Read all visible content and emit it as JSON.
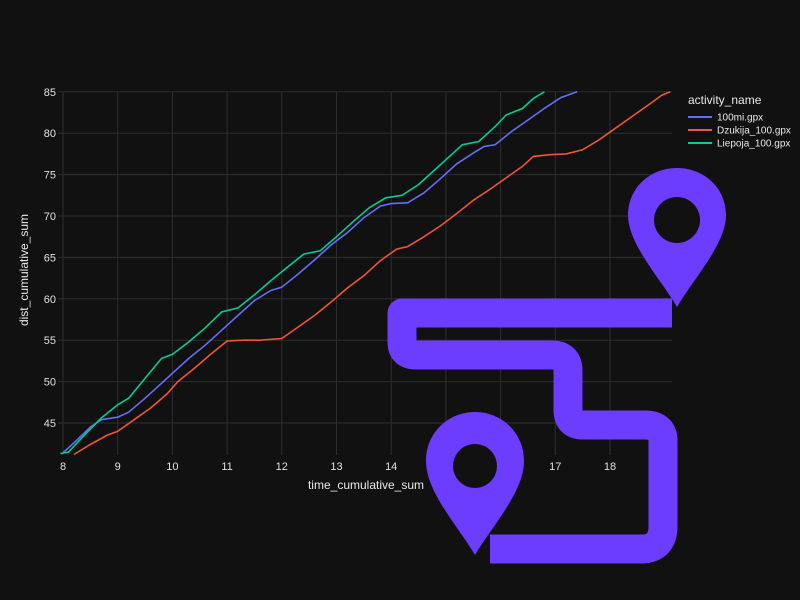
{
  "chart_data": {
    "type": "line",
    "xlabel": "time_cumulative_sum",
    "ylabel": "dist_cumulative_sum",
    "xlim": [
      7.95,
      19.1
    ],
    "ylim": [
      41.2,
      85
    ],
    "xticks": [
      8,
      9,
      10,
      11,
      12,
      13,
      14,
      15,
      16,
      17,
      18
    ],
    "yticks": [
      45,
      50,
      55,
      60,
      65,
      70,
      75,
      80,
      85
    ],
    "grid": true,
    "legend": {
      "title": "activity_name",
      "position": "top-right"
    },
    "series": [
      {
        "name": "100mi.gpx",
        "color": "#636efa",
        "points": [
          [
            8.0,
            41.4
          ],
          [
            8.2,
            42.6
          ],
          [
            8.5,
            44.5
          ],
          [
            8.7,
            45.4
          ],
          [
            9.0,
            45.7
          ],
          [
            9.2,
            46.3
          ],
          [
            9.5,
            48.0
          ],
          [
            9.8,
            49.8
          ],
          [
            10.0,
            51.0
          ],
          [
            10.3,
            52.8
          ],
          [
            10.6,
            54.4
          ],
          [
            10.9,
            56.2
          ],
          [
            11.2,
            58.0
          ],
          [
            11.5,
            59.8
          ],
          [
            11.8,
            61.0
          ],
          [
            12.0,
            61.4
          ],
          [
            12.3,
            63.0
          ],
          [
            12.6,
            64.7
          ],
          [
            12.9,
            66.5
          ],
          [
            13.2,
            68.0
          ],
          [
            13.5,
            69.8
          ],
          [
            13.8,
            71.2
          ],
          [
            14.0,
            71.5
          ],
          [
            14.3,
            71.6
          ],
          [
            14.6,
            72.8
          ],
          [
            14.9,
            74.5
          ],
          [
            15.2,
            76.3
          ],
          [
            15.5,
            77.6
          ],
          [
            15.7,
            78.4
          ],
          [
            15.9,
            78.6
          ],
          [
            16.2,
            80.2
          ],
          [
            16.5,
            81.6
          ],
          [
            16.8,
            83.0
          ],
          [
            17.1,
            84.3
          ],
          [
            17.4,
            85.0
          ]
        ]
      },
      {
        "name": "Dzukija_100.gpx",
        "color": "#ef553b",
        "points": [
          [
            8.2,
            41.2
          ],
          [
            8.5,
            42.4
          ],
          [
            8.8,
            43.5
          ],
          [
            9.0,
            44.0
          ],
          [
            9.3,
            45.4
          ],
          [
            9.6,
            46.8
          ],
          [
            9.9,
            48.5
          ],
          [
            10.1,
            50.0
          ],
          [
            10.4,
            51.6
          ],
          [
            10.7,
            53.3
          ],
          [
            11.0,
            54.9
          ],
          [
            11.3,
            55.0
          ],
          [
            11.6,
            55.0
          ],
          [
            12.0,
            55.2
          ],
          [
            12.3,
            56.6
          ],
          [
            12.6,
            58.0
          ],
          [
            12.9,
            59.6
          ],
          [
            13.2,
            61.3
          ],
          [
            13.5,
            62.8
          ],
          [
            13.8,
            64.6
          ],
          [
            14.1,
            66.0
          ],
          [
            14.3,
            66.3
          ],
          [
            14.6,
            67.5
          ],
          [
            14.9,
            68.8
          ],
          [
            15.2,
            70.3
          ],
          [
            15.5,
            71.9
          ],
          [
            15.8,
            73.2
          ],
          [
            16.1,
            74.6
          ],
          [
            16.4,
            76.0
          ],
          [
            16.6,
            77.2
          ],
          [
            16.9,
            77.4
          ],
          [
            17.2,
            77.5
          ],
          [
            17.5,
            78.0
          ],
          [
            17.8,
            79.2
          ],
          [
            18.1,
            80.6
          ],
          [
            18.4,
            82.0
          ],
          [
            18.7,
            83.4
          ],
          [
            18.95,
            84.6
          ],
          [
            19.1,
            85.0
          ]
        ]
      },
      {
        "name": "Liepoja_100.gpx",
        "color": "#00cc96",
        "points": [
          [
            7.95,
            41.3
          ],
          [
            8.1,
            41.5
          ],
          [
            8.4,
            43.6
          ],
          [
            8.7,
            45.6
          ],
          [
            9.0,
            47.2
          ],
          [
            9.2,
            48.0
          ],
          [
            9.5,
            50.4
          ],
          [
            9.8,
            52.8
          ],
          [
            10.0,
            53.3
          ],
          [
            10.3,
            54.8
          ],
          [
            10.6,
            56.5
          ],
          [
            10.9,
            58.4
          ],
          [
            11.2,
            58.9
          ],
          [
            11.5,
            60.5
          ],
          [
            11.8,
            62.2
          ],
          [
            12.1,
            63.8
          ],
          [
            12.4,
            65.4
          ],
          [
            12.7,
            65.8
          ],
          [
            13.0,
            67.5
          ],
          [
            13.3,
            69.3
          ],
          [
            13.6,
            71.0
          ],
          [
            13.9,
            72.2
          ],
          [
            14.2,
            72.5
          ],
          [
            14.5,
            73.8
          ],
          [
            14.8,
            75.6
          ],
          [
            15.1,
            77.4
          ],
          [
            15.3,
            78.6
          ],
          [
            15.6,
            79.0
          ],
          [
            15.9,
            80.8
          ],
          [
            16.1,
            82.2
          ],
          [
            16.4,
            83.0
          ],
          [
            16.6,
            84.2
          ],
          [
            16.8,
            85.0
          ]
        ]
      }
    ]
  },
  "overlay": {
    "route_icon": "route-map-pin-icon",
    "color": "#6c3cff"
  }
}
